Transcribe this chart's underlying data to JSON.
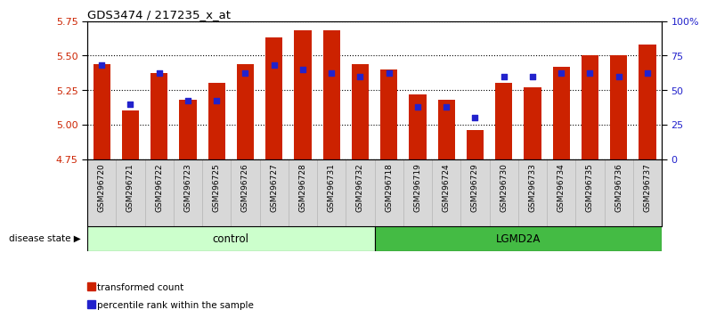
{
  "title": "GDS3474 / 217235_x_at",
  "samples": [
    "GSM296720",
    "GSM296721",
    "GSM296722",
    "GSM296723",
    "GSM296725",
    "GSM296726",
    "GSM296727",
    "GSM296728",
    "GSM296731",
    "GSM296732",
    "GSM296718",
    "GSM296719",
    "GSM296724",
    "GSM296729",
    "GSM296730",
    "GSM296733",
    "GSM296734",
    "GSM296735",
    "GSM296736",
    "GSM296737"
  ],
  "bar_values": [
    5.44,
    5.1,
    5.37,
    5.18,
    5.3,
    5.44,
    5.63,
    5.68,
    5.68,
    5.44,
    5.4,
    5.22,
    5.18,
    4.96,
    5.3,
    5.27,
    5.42,
    5.5,
    5.5,
    5.58
  ],
  "percentile_values": [
    68,
    40,
    62,
    42,
    42,
    62,
    68,
    65,
    62,
    60,
    62,
    38,
    38,
    30,
    60,
    60,
    62,
    62,
    60,
    62
  ],
  "ylim_left": [
    4.75,
    5.75
  ],
  "ylim_right": [
    0,
    100
  ],
  "yticks_left": [
    4.75,
    5.0,
    5.25,
    5.5,
    5.75
  ],
  "yticks_right": [
    0,
    25,
    50,
    75,
    100
  ],
  "ytick_labels_right": [
    "0",
    "25",
    "50",
    "75",
    "100%"
  ],
  "bar_color": "#cc2200",
  "dot_color": "#2222cc",
  "plot_bg_color": "#ffffff",
  "tick_area_bg": "#d8d8d8",
  "control_bg_light": "#ccffcc",
  "control_bg_dark": "#55cc55",
  "lgmd2a_bg": "#44bb44",
  "control_label": "control",
  "lgmd2a_label": "LGMD2A",
  "disease_state_label": "disease state",
  "legend_bar_label": "transformed count",
  "legend_dot_label": "percentile rank within the sample",
  "n_control": 10,
  "n_lgmd2a": 10
}
